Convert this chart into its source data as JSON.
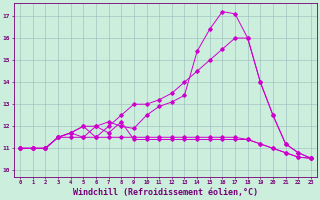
{
  "background_color": "#cceedd",
  "grid_color": "#99bbbb",
  "line_color": "#cc00cc",
  "xlabel": "Windchill (Refroidissement éolien,°C)",
  "xlabel_fontsize": 6.0,
  "xtick_labels": [
    "0",
    "1",
    "2",
    "3",
    "4",
    "5",
    "6",
    "7",
    "8",
    "9",
    "10",
    "11",
    "12",
    "13",
    "14",
    "15",
    "16",
    "17",
    "18",
    "19",
    "20",
    "21",
    "22",
    "23"
  ],
  "ytick_vals": [
    10,
    11,
    12,
    13,
    14,
    15,
    16,
    17
  ],
  "ytick_labels": [
    "10",
    "11",
    "12",
    "13",
    "14",
    "15",
    "16",
    "17"
  ],
  "xlim": [
    -0.5,
    23.5
  ],
  "ylim": [
    9.7,
    17.6
  ],
  "curve1_x": [
    0,
    1,
    2,
    3,
    4,
    5,
    6,
    7,
    8,
    9,
    10,
    11,
    12,
    13,
    14,
    15,
    16,
    17,
    18,
    19,
    20,
    21,
    22,
    23
  ],
  "curve1_y": [
    11.0,
    11.0,
    11.0,
    11.5,
    11.5,
    11.5,
    11.5,
    11.5,
    11.5,
    11.5,
    11.5,
    11.5,
    11.5,
    11.5,
    11.5,
    11.5,
    11.5,
    11.5,
    11.4,
    11.2,
    11.0,
    10.8,
    10.6,
    10.55
  ],
  "curve2_x": [
    0,
    1,
    2,
    3,
    4,
    5,
    6,
    7,
    8,
    9,
    10,
    11,
    12,
    13,
    14,
    15,
    16,
    17,
    18,
    19,
    20,
    21,
    22,
    23
  ],
  "curve2_y": [
    11.0,
    11.0,
    11.0,
    11.5,
    11.7,
    11.5,
    12.0,
    11.7,
    12.2,
    11.4,
    11.4,
    11.4,
    11.4,
    11.4,
    11.4,
    11.4,
    11.4,
    11.4,
    11.4,
    11.2,
    11.0,
    10.8,
    10.6,
    10.55
  ],
  "curve3_x": [
    0,
    1,
    2,
    3,
    4,
    5,
    6,
    7,
    8,
    9,
    10,
    11,
    12,
    13,
    14,
    15,
    16,
    17,
    18,
    19,
    20,
    21,
    22,
    23
  ],
  "curve3_y": [
    11.0,
    11.0,
    11.0,
    11.5,
    11.7,
    12.0,
    12.0,
    12.2,
    12.0,
    11.9,
    12.5,
    12.9,
    13.1,
    13.4,
    15.4,
    16.4,
    17.2,
    17.1,
    16.0,
    14.0,
    12.5,
    11.2,
    10.8,
    10.55
  ],
  "curve4_x": [
    0,
    1,
    2,
    3,
    4,
    5,
    6,
    7,
    8,
    9,
    10,
    11,
    12,
    13,
    14,
    15,
    16,
    17,
    18,
    19,
    20,
    21,
    22,
    23
  ],
  "curve4_y": [
    11.0,
    11.0,
    11.0,
    11.5,
    11.7,
    12.0,
    11.5,
    12.0,
    12.5,
    13.0,
    13.0,
    13.2,
    13.5,
    14.0,
    14.5,
    15.0,
    15.5,
    16.0,
    16.0,
    14.0,
    12.5,
    11.2,
    10.8,
    10.55
  ]
}
